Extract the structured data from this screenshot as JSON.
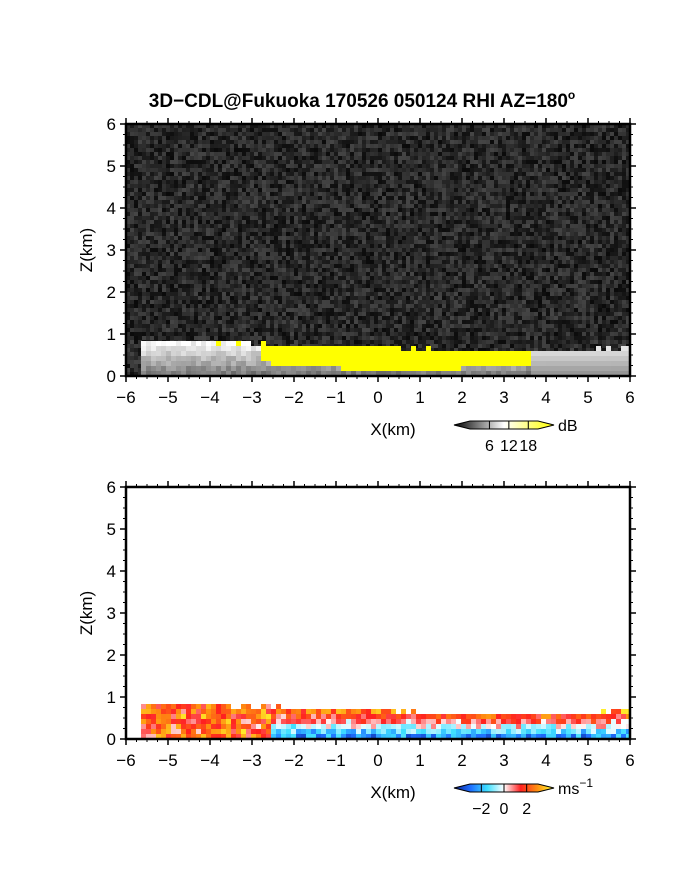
{
  "figure": {
    "title_main": "3D−CDL@Fukuoka 170526 050124 RHI AZ=180",
    "title_deg": "o"
  },
  "chart_data": [
    {
      "type": "heatmap",
      "name": "snr",
      "title": "3D−CDL@Fukuoka 170526 050124 RHI AZ=180°",
      "xlabel": "X(km)",
      "ylabel": "Z(km)",
      "xlim": [
        -6,
        6
      ],
      "ylim": [
        0,
        6
      ],
      "xticks": [
        "−6",
        "−5",
        "−4",
        "−3",
        "−2",
        "−1",
        "0",
        "1",
        "2",
        "3",
        "4",
        "5",
        "6"
      ],
      "yticks": [
        "0",
        "1",
        "2",
        "3",
        "4",
        "5",
        "6"
      ],
      "background": "noise",
      "colorbar": {
        "unit": "dB",
        "ticks": [
          "6",
          "12",
          "18"
        ],
        "tick_values": [
          6,
          12,
          18
        ],
        "range": [
          0,
          21
        ],
        "colors": [
          "#000000",
          "#ffffff",
          "#ffff00"
        ]
      },
      "echo_top_km": [
        [
          -5.6,
          0.82
        ],
        [
          -4.5,
          0.82
        ],
        [
          -3.0,
          0.8
        ],
        [
          -2.0,
          0.72
        ],
        [
          -1.0,
          0.7
        ],
        [
          0.0,
          0.7
        ],
        [
          1.0,
          0.65
        ],
        [
          2.0,
          0.6
        ],
        [
          3.0,
          0.6
        ],
        [
          4.0,
          0.62
        ],
        [
          5.0,
          0.62
        ],
        [
          6.0,
          0.65
        ]
      ],
      "strong_echo_region": {
        "x_range": [
          -2.8,
          3.6
        ],
        "value_db": 18
      }
    },
    {
      "type": "heatmap",
      "name": "velocity",
      "xlabel": "X(km)",
      "ylabel": "Z(km)",
      "xlim": [
        -6,
        6
      ],
      "ylim": [
        0,
        6
      ],
      "xticks": [
        "−6",
        "−5",
        "−4",
        "−3",
        "−2",
        "−1",
        "0",
        "1",
        "2",
        "3",
        "4",
        "5",
        "6"
      ],
      "yticks": [
        "0",
        "1",
        "2",
        "3",
        "4",
        "5",
        "6"
      ],
      "background": "none",
      "colorbar": {
        "unit": "ms",
        "unit_exp": "−1",
        "ticks": [
          "−2",
          "0",
          "2"
        ],
        "tick_values": [
          -2,
          0,
          2
        ],
        "range": [
          -3,
          3
        ],
        "colors": [
          "#0a1f8f",
          "#1f6fff",
          "#3fe0ff",
          "#ffffff",
          "#ff2020",
          "#ff9010",
          "#ffff30"
        ]
      },
      "echo_top_km": [
        [
          -5.6,
          0.82
        ],
        [
          -4.5,
          0.82
        ],
        [
          -3.0,
          0.8
        ],
        [
          -2.0,
          0.72
        ],
        [
          -1.0,
          0.7
        ],
        [
          0.0,
          0.7
        ],
        [
          1.0,
          0.65
        ],
        [
          2.0,
          0.6
        ],
        [
          3.0,
          0.6
        ],
        [
          4.0,
          0.62
        ],
        [
          5.0,
          0.62
        ],
        [
          6.0,
          0.65
        ]
      ],
      "velocity_pattern": {
        "near_ground_ms": -2,
        "upper_layer_ms": 2
      }
    }
  ]
}
